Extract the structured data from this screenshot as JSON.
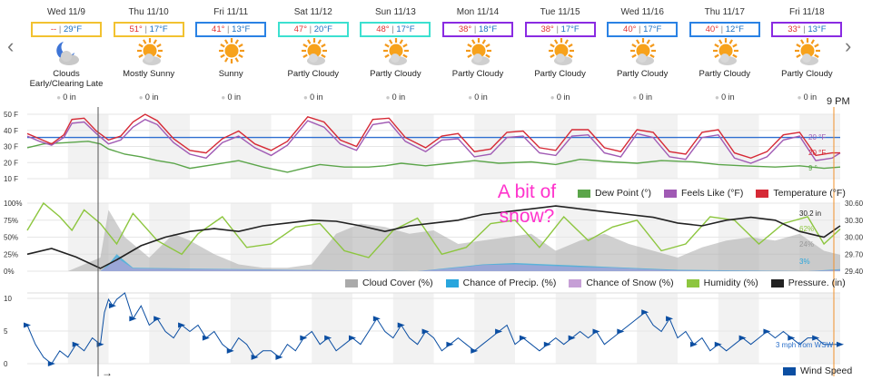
{
  "nav": {
    "prev_icon": "‹",
    "next_icon": "›"
  },
  "days": [
    {
      "date": "Wed 11/9",
      "hi": "--",
      "lo": "29°F",
      "cond": "Clouds Early/Clearing Late",
      "icon": "moon-cloud",
      "precip": "0 in",
      "box": "#f2c230"
    },
    {
      "date": "Thu 11/10",
      "hi": "51°",
      "lo": "17°F",
      "cond": "Mostly Sunny",
      "icon": "sun-cloud",
      "precip": "0 in",
      "box": "#f2c230"
    },
    {
      "date": "Fri 11/11",
      "hi": "41°",
      "lo": "13°F",
      "cond": "Sunny",
      "icon": "sun",
      "precip": "0 in",
      "box": "#2a82e4"
    },
    {
      "date": "Sat 11/12",
      "hi": "47°",
      "lo": "20°F",
      "cond": "Partly Cloudy",
      "icon": "sun-cloud",
      "precip": "0 in",
      "box": "#3ce0d0"
    },
    {
      "date": "Sun 11/13",
      "hi": "48°",
      "lo": "17°F",
      "cond": "Partly Cloudy",
      "icon": "sun-cloud",
      "precip": "0 in",
      "box": "#3ce0d0"
    },
    {
      "date": "Mon 11/14",
      "hi": "38°",
      "lo": "18°F",
      "cond": "Partly Cloudy",
      "icon": "sun-cloud",
      "precip": "0 in",
      "box": "#8a2be2"
    },
    {
      "date": "Tue 11/15",
      "hi": "38°",
      "lo": "17°F",
      "cond": "Partly Cloudy",
      "icon": "sun-cloud",
      "precip": "0 in",
      "box": "#8a2be2"
    },
    {
      "date": "Wed 11/16",
      "hi": "40°",
      "lo": "17°F",
      "cond": "Partly Cloudy",
      "icon": "sun-cloud",
      "precip": "0 in",
      "box": "#2a82e4"
    },
    {
      "date": "Thu 11/17",
      "hi": "40°",
      "lo": "12°F",
      "cond": "Partly Cloudy",
      "icon": "sun-cloud",
      "precip": "0 in",
      "box": "#2a82e4"
    },
    {
      "date": "Fri 11/18",
      "hi": "33°",
      "lo": "13°F",
      "cond": "Partly Cloudy",
      "icon": "sun-cloud",
      "precip": "0 in",
      "box": "#8a2be2"
    }
  ],
  "time_marker": "9 PM",
  "annotation": "A bit of snow?",
  "arrow_glyph": "→",
  "chart_data": [
    {
      "type": "line",
      "ylim": [
        0,
        50
      ],
      "yticks": [
        "50 F",
        "40 F",
        "30 F",
        "20 F",
        "10 F"
      ],
      "x_range_days": [
        0,
        10
      ],
      "freezing_line": 32,
      "grid": true,
      "legend_position": "bottom-right",
      "end_labels": [
        "20 °F",
        "20 °F",
        "9 °"
      ],
      "series": [
        {
          "name": "Dew Point (°)",
          "color": "#5ba54a",
          "x": [
            0,
            0.2,
            0.5,
            0.75,
            0.9,
            1.0,
            1.2,
            1.4,
            1.6,
            1.8,
            2.0,
            2.3,
            2.6,
            2.9,
            3.2,
            3.4,
            3.6,
            3.9,
            4.2,
            4.4,
            4.6,
            4.9,
            5.2,
            5.5,
            5.8,
            6.2,
            6.5,
            6.8,
            7.2,
            7.5,
            7.8,
            8.2,
            8.5,
            8.8,
            9.2,
            9.5,
            9.8,
            10
          ],
          "y": [
            24,
            27,
            28,
            29,
            27,
            23,
            19,
            17,
            14,
            12,
            8,
            11,
            14,
            9,
            5,
            8,
            11,
            9,
            9,
            10,
            12,
            10,
            12,
            14,
            12,
            13,
            11,
            15,
            13,
            12,
            14,
            13,
            11,
            10,
            9,
            10,
            8,
            9
          ]
        },
        {
          "name": "Feels Like (°F)",
          "color": "#a05ab4",
          "x": [
            0,
            0.15,
            0.3,
            0.45,
            0.55,
            0.7,
            0.85,
            1.0,
            1.15,
            1.3,
            1.45,
            1.6,
            1.8,
            2.0,
            2.2,
            2.4,
            2.6,
            2.8,
            3.0,
            3.2,
            3.45,
            3.65,
            3.85,
            4.05,
            4.25,
            4.45,
            4.65,
            4.9,
            5.1,
            5.3,
            5.5,
            5.7,
            5.9,
            6.1,
            6.3,
            6.5,
            6.7,
            6.9,
            7.1,
            7.3,
            7.5,
            7.7,
            7.9,
            8.1,
            8.3,
            8.5,
            8.7,
            8.9,
            9.1,
            9.3,
            9.5,
            9.7,
            9.9,
            10
          ],
          "y": [
            33,
            29,
            26,
            32,
            43,
            44,
            35,
            27,
            30,
            40,
            46,
            42,
            28,
            19,
            16,
            28,
            33,
            24,
            18,
            26,
            45,
            40,
            27,
            22,
            42,
            44,
            29,
            21,
            30,
            31,
            17,
            19,
            32,
            33,
            20,
            18,
            33,
            34,
            20,
            17,
            35,
            32,
            17,
            15,
            32,
            34,
            16,
            12,
            17,
            30,
            33,
            14,
            16,
            20
          ]
        },
        {
          "name": "Temperature (°F)",
          "color": "#d62a36",
          "x": [
            0,
            0.15,
            0.3,
            0.45,
            0.55,
            0.7,
            0.85,
            1.0,
            1.15,
            1.3,
            1.45,
            1.6,
            1.8,
            2.0,
            2.2,
            2.4,
            2.6,
            2.8,
            3.0,
            3.2,
            3.45,
            3.65,
            3.85,
            4.05,
            4.25,
            4.45,
            4.65,
            4.9,
            5.1,
            5.3,
            5.5,
            5.7,
            5.9,
            6.1,
            6.3,
            6.5,
            6.7,
            6.9,
            7.1,
            7.3,
            7.5,
            7.7,
            7.9,
            8.1,
            8.3,
            8.5,
            8.7,
            8.9,
            9.1,
            9.3,
            9.5,
            9.7,
            9.9,
            10
          ],
          "y": [
            35,
            31,
            27,
            34,
            46,
            47,
            37,
            30,
            33,
            44,
            50,
            45,
            31,
            22,
            20,
            31,
            37,
            27,
            22,
            29,
            48,
            44,
            30,
            25,
            46,
            47,
            32,
            24,
            33,
            35,
            21,
            23,
            36,
            37,
            24,
            22,
            38,
            38,
            24,
            21,
            38,
            36,
            21,
            19,
            36,
            38,
            20,
            16,
            21,
            34,
            36,
            18,
            20,
            20
          ]
        }
      ]
    },
    {
      "type": "area",
      "ylim": [
        0,
        100
      ],
      "yticks": [
        "100%",
        "75%",
        "50%",
        "25%",
        "0%"
      ],
      "y2ticks": [
        "30.60",
        "30.30",
        "30.00",
        "29.70",
        "29.40"
      ],
      "y2lim": [
        29.4,
        30.6
      ],
      "x_range_days": [
        0,
        10
      ],
      "grid": true,
      "legend_position": "bottom",
      "end_labels": [
        "30.2 in",
        "62%",
        "24%",
        "3%"
      ],
      "series": [
        {
          "name": "Cloud Cover (%)",
          "color": "#aaaaaa",
          "x": [
            0,
            0.5,
            0.9,
            1.0,
            1.2,
            1.5,
            1.8,
            2.0,
            2.3,
            2.6,
            2.9,
            3.2,
            3.5,
            3.8,
            4.1,
            4.4,
            4.7,
            5.0,
            5.3,
            5.6,
            5.9,
            6.2,
            6.5,
            6.8,
            7.1,
            7.4,
            7.7,
            8.0,
            8.3,
            8.6,
            8.9,
            9.2,
            9.5,
            9.8,
            10
          ],
          "y": [
            0,
            0,
            20,
            90,
            50,
            20,
            55,
            45,
            25,
            10,
            5,
            5,
            10,
            55,
            70,
            65,
            55,
            60,
            40,
            45,
            50,
            55,
            30,
            45,
            55,
            40,
            30,
            20,
            35,
            45,
            50,
            45,
            55,
            30,
            24
          ]
        },
        {
          "name": "Chance of Precip. (%)",
          "color": "#29a6dd",
          "x": [
            0,
            0.9,
            1.0,
            1.1,
            1.3,
            4.8,
            5.2,
            5.6,
            6.0,
            6.4,
            6.8,
            7.2,
            7.6,
            8.0,
            9.6,
            10
          ],
          "y": [
            0,
            0,
            10,
            25,
            5,
            0,
            5,
            10,
            12,
            10,
            8,
            6,
            4,
            2,
            0,
            3
          ]
        },
        {
          "name": "Chance of Snow (%)",
          "color": "#c69fd6",
          "x": [
            0,
            0.9,
            1.0,
            1.1,
            1.3,
            4.8,
            5.2,
            5.6,
            6.0,
            6.4,
            6.8,
            7.2,
            7.6,
            8.0,
            9.6,
            10
          ],
          "y": [
            0,
            0,
            8,
            20,
            4,
            0,
            4,
            9,
            10,
            8,
            6,
            5,
            3,
            1,
            0,
            2
          ]
        },
        {
          "name": "Humidity (%)",
          "color": "#8dc63f",
          "x": [
            0,
            0.2,
            0.4,
            0.55,
            0.7,
            0.9,
            1.1,
            1.3,
            1.6,
            1.9,
            2.1,
            2.4,
            2.7,
            3.0,
            3.3,
            3.6,
            3.9,
            4.2,
            4.5,
            4.8,
            5.1,
            5.4,
            5.7,
            6.0,
            6.3,
            6.6,
            6.9,
            7.2,
            7.5,
            7.8,
            8.1,
            8.4,
            8.7,
            9.0,
            9.3,
            9.6,
            9.8,
            10
          ],
          "y": [
            60,
            100,
            80,
            60,
            90,
            70,
            40,
            85,
            45,
            25,
            55,
            80,
            35,
            40,
            65,
            70,
            30,
            20,
            60,
            78,
            25,
            35,
            70,
            75,
            35,
            80,
            45,
            65,
            75,
            30,
            40,
            80,
            75,
            40,
            70,
            80,
            40,
            62
          ]
        },
        {
          "name": "Pressure. (in)",
          "color": "#222222",
          "axis": "right",
          "x": [
            0,
            0.3,
            0.6,
            0.9,
            1.1,
            1.4,
            1.7,
            2.0,
            2.3,
            2.6,
            2.9,
            3.2,
            3.5,
            3.8,
            4.1,
            4.4,
            4.7,
            5.0,
            5.3,
            5.6,
            5.9,
            6.2,
            6.5,
            6.8,
            7.1,
            7.4,
            7.7,
            8.0,
            8.3,
            8.6,
            8.9,
            9.2,
            9.5,
            9.8,
            10
          ],
          "y": [
            29.7,
            29.8,
            29.65,
            29.45,
            29.6,
            29.85,
            30.0,
            30.1,
            30.15,
            30.1,
            30.2,
            30.25,
            30.3,
            30.28,
            30.2,
            30.1,
            30.2,
            30.25,
            30.3,
            30.4,
            30.45,
            30.5,
            30.55,
            30.5,
            30.45,
            30.4,
            30.35,
            30.25,
            30.2,
            30.3,
            30.35,
            30.3,
            30.1,
            30.0,
            30.2
          ]
        }
      ]
    },
    {
      "type": "line",
      "ylim": [
        0,
        11
      ],
      "yticks": [
        "10",
        "5",
        "0"
      ],
      "x_range_days": [
        0,
        10
      ],
      "grid": true,
      "legend_position": "bottom-right",
      "end_labels": [
        "3 mph from WSW"
      ],
      "series": [
        {
          "name": "Wind Speed",
          "color": "#0b4ea2",
          "x": [
            0,
            0.1,
            0.2,
            0.3,
            0.4,
            0.5,
            0.6,
            0.7,
            0.8,
            0.9,
            0.95,
            1.0,
            1.05,
            1.1,
            1.2,
            1.3,
            1.4,
            1.5,
            1.6,
            1.7,
            1.8,
            1.9,
            2.0,
            2.1,
            2.2,
            2.3,
            2.4,
            2.5,
            2.6,
            2.7,
            2.8,
            2.9,
            3.0,
            3.1,
            3.2,
            3.3,
            3.4,
            3.5,
            3.6,
            3.7,
            3.8,
            3.9,
            4.0,
            4.1,
            4.2,
            4.3,
            4.4,
            4.5,
            4.6,
            4.7,
            4.8,
            4.9,
            5.0,
            5.1,
            5.2,
            5.3,
            5.4,
            5.5,
            5.6,
            5.7,
            5.8,
            5.9,
            6.0,
            6.1,
            6.2,
            6.3,
            6.4,
            6.5,
            6.6,
            6.7,
            6.8,
            6.9,
            7.0,
            7.1,
            7.2,
            7.3,
            7.4,
            7.5,
            7.6,
            7.7,
            7.8,
            7.9,
            8.0,
            8.1,
            8.2,
            8.3,
            8.4,
            8.5,
            8.6,
            8.7,
            8.8,
            8.9,
            9.0,
            9.1,
            9.2,
            9.3,
            9.4,
            9.5,
            9.6,
            9.7,
            9.8,
            9.9,
            10
          ],
          "y": [
            6,
            3,
            1,
            0,
            2,
            1,
            3,
            2,
            4,
            3,
            8,
            10,
            9,
            10,
            11,
            7,
            9,
            6,
            7,
            5,
            4,
            6,
            5,
            6,
            4,
            5,
            3,
            2,
            4,
            3,
            1,
            2,
            2,
            1,
            3,
            2,
            4,
            5,
            3,
            4,
            2,
            3,
            4,
            3,
            5,
            7,
            5,
            4,
            6,
            4,
            3,
            5,
            4,
            2,
            3,
            4,
            3,
            2,
            3,
            4,
            5,
            6,
            3,
            4,
            3,
            2,
            3,
            4,
            3,
            4,
            5,
            4,
            5,
            3,
            4,
            5,
            6,
            7,
            8,
            6,
            5,
            7,
            4,
            5,
            3,
            4,
            2,
            3,
            2,
            3,
            4,
            3,
            4,
            5,
            4,
            5,
            4,
            3,
            4,
            4,
            3,
            3,
            3
          ]
        }
      ]
    }
  ],
  "legend1": [
    {
      "label": "Dew Point (°)",
      "color": "#5ba54a"
    },
    {
      "label": "Feels Like (°F)",
      "color": "#a05ab4"
    },
    {
      "label": "Temperature (°F)",
      "color": "#d62a36"
    }
  ],
  "legend2": [
    {
      "label": "Cloud Cover (%)",
      "color": "#aaaaaa"
    },
    {
      "label": "Chance of Precip. (%)",
      "color": "#29a6dd"
    },
    {
      "label": "Chance of Snow (%)",
      "color": "#c69fd6"
    },
    {
      "label": "Humidity (%)",
      "color": "#8dc63f"
    },
    {
      "label": "Pressure. (in)",
      "color": "#222222"
    }
  ],
  "legend3": [
    {
      "label": "Wind Speed",
      "color": "#0b4ea2"
    }
  ]
}
